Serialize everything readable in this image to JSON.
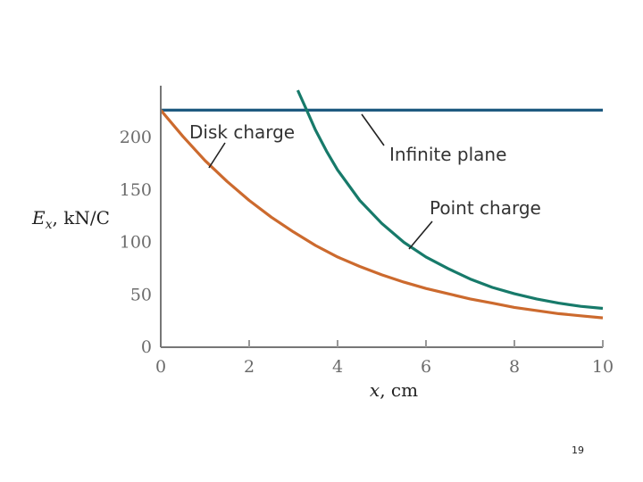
{
  "page_number": "19",
  "chart_data": {
    "type": "line",
    "xlabel": "x, cm",
    "ylabel": "E_x, kN/C",
    "xlim": [
      0,
      10
    ],
    "ylim": [
      0,
      240
    ],
    "x_ticks": [
      "0",
      "2",
      "4",
      "6",
      "8",
      "10"
    ],
    "y_ticks": [
      "0",
      "50",
      "100",
      "150",
      "200"
    ],
    "grid": false,
    "series": [
      {
        "name": "Infinite plane",
        "color": "#1e5a80",
        "x": [
          0,
          1,
          2,
          3,
          4,
          5,
          6,
          7,
          8,
          9,
          10
        ],
        "y": [
          226,
          226,
          226,
          226,
          226,
          226,
          226,
          226,
          226,
          226,
          226
        ]
      },
      {
        "name": "Disk charge",
        "color": "#cc6a2e",
        "x": [
          0,
          0.5,
          1,
          1.5,
          2,
          2.5,
          3,
          3.5,
          4,
          4.5,
          5,
          5.5,
          6,
          6.5,
          7,
          7.5,
          8,
          8.5,
          9,
          9.5,
          10
        ],
        "y": [
          226,
          201,
          178,
          158,
          140,
          124,
          110,
          97,
          86,
          77,
          69,
          62,
          56,
          51,
          46,
          42,
          38,
          35,
          32,
          30,
          28
        ]
      },
      {
        "name": "Point charge",
        "color": "#177a6a",
        "x": [
          3.1,
          3.3,
          3.5,
          3.75,
          4,
          4.5,
          5,
          5.5,
          6,
          6.5,
          7,
          7.5,
          8,
          8.5,
          9,
          9.5,
          10
        ],
        "y": [
          245,
          226,
          207,
          187,
          169,
          140,
          118,
          100,
          86,
          75,
          65,
          57,
          51,
          46,
          42,
          39,
          37
        ]
      }
    ],
    "annotations": [
      {
        "text": "Disk charge",
        "series": "Disk charge"
      },
      {
        "text": "Infinite plane",
        "series": "Infinite plane"
      },
      {
        "text": "Point charge",
        "series": "Point charge"
      }
    ]
  }
}
